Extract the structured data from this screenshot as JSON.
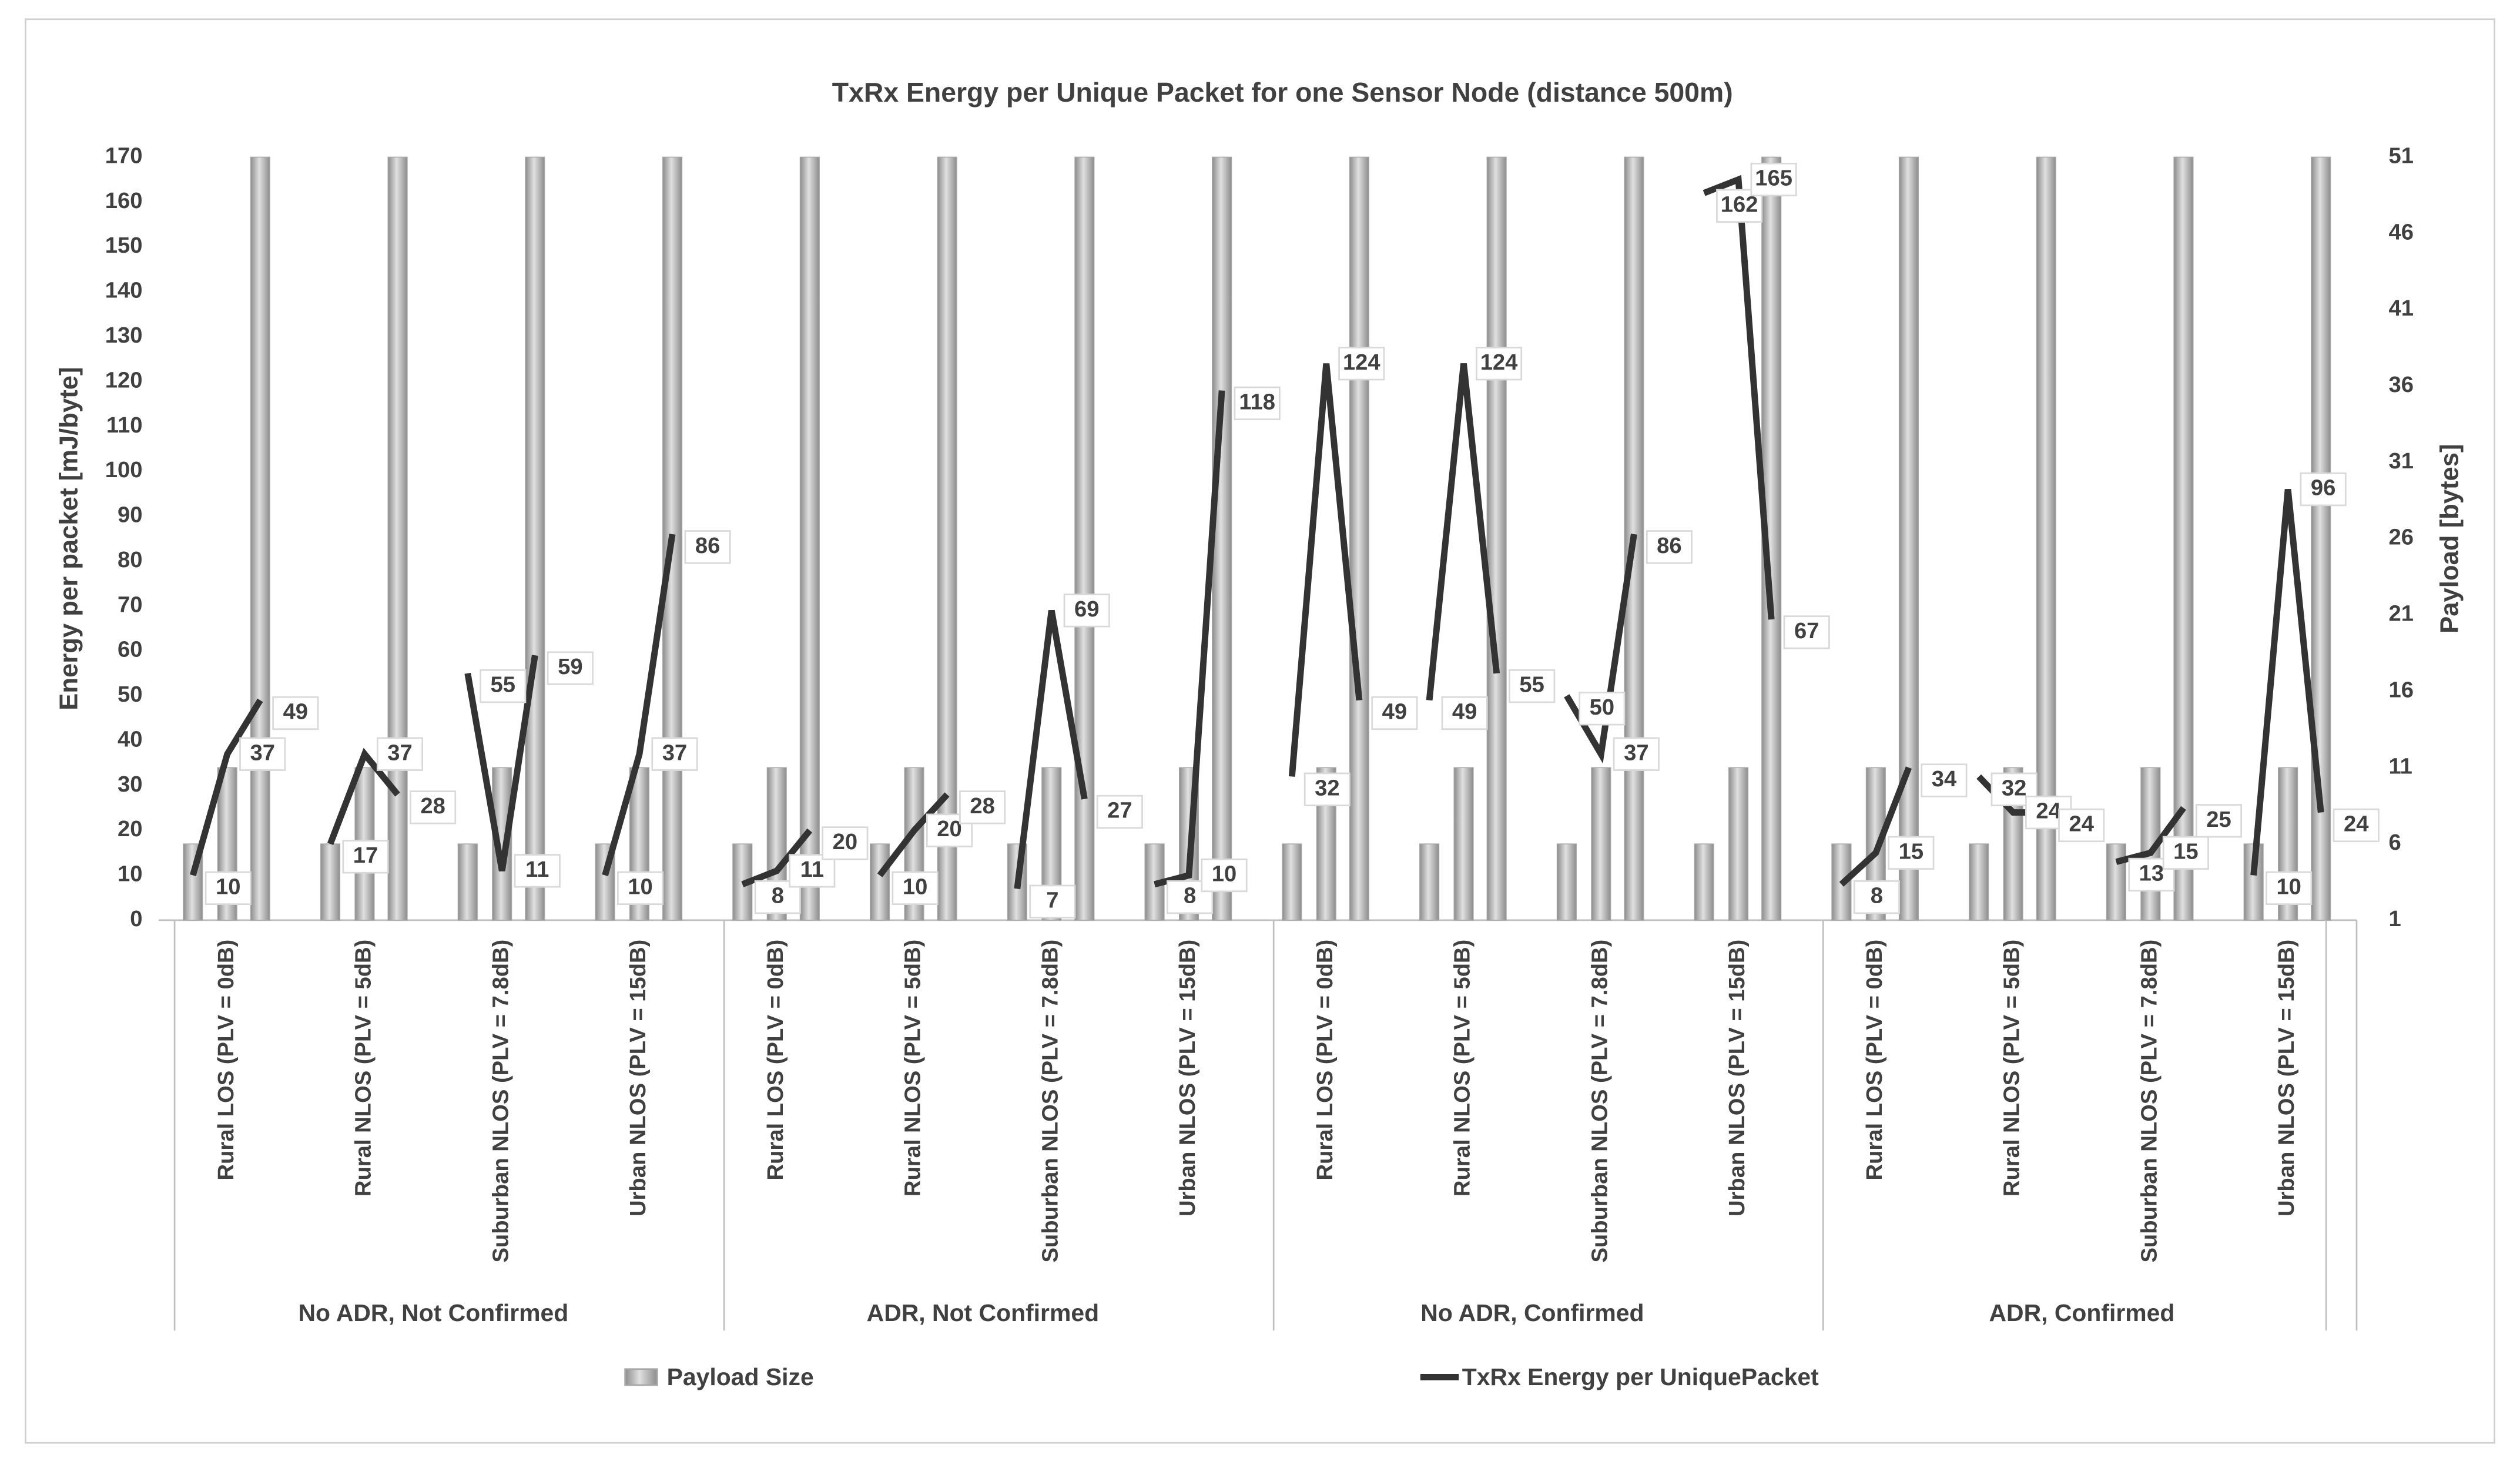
{
  "chart_data": {
    "type": "bar-line",
    "title": "TxRx Energy per Unique Packet for one Sensor Node  (distance 500m)",
    "y_label": "Energy per packet [mJ/byte]",
    "y2_label": "Payload [bytes]",
    "categories": [
      "Rural LOS (PLV = 0dB)",
      "Rural NLOS (PLV = 5dB)",
      "Suburban NLOS (PLV = 7.8dB)",
      "Urban NLOS (PLV = 15dB)",
      "Rural LOS (PLV = 0dB)",
      "Rural NLOS (PLV = 5dB)",
      "Suburban NLOS (PLV = 7.8dB)",
      "Urban NLOS (PLV = 15dB)",
      "Rural LOS (PLV = 0dB)",
      "Rural NLOS (PLV = 5dB)",
      "Suburban NLOS (PLV = 7.8dB)",
      "Urban NLOS (PLV = 15dB)",
      "Rural LOS (PLV = 0dB)",
      "Rural NLOS (PLV = 5dB)",
      "Suburban NLOS (PLV = 7.8dB)",
      "Urban NLOS (PLV = 15dB)"
    ],
    "groups": [
      "No ADR, Not Confirmed",
      "ADR, Not Confirmed",
      "No ADR, Confirmed",
      "ADR, Confirmed"
    ],
    "series": [
      {
        "name": "Payload Size",
        "type": "bar",
        "axis": "y2",
        "color": "#a6a6a6",
        "values": [
          [
            6,
            11,
            51
          ],
          [
            6,
            11,
            51
          ],
          [
            6,
            11,
            51
          ],
          [
            6,
            11,
            51
          ],
          [
            6,
            11,
            51
          ],
          [
            6,
            11,
            51
          ],
          [
            6,
            11,
            51
          ],
          [
            6,
            11,
            51
          ],
          [
            6,
            11,
            51
          ],
          [
            6,
            11,
            51
          ],
          [
            6,
            11,
            51
          ],
          [
            6,
            11,
            51
          ],
          [
            6,
            11,
            51
          ],
          [
            6,
            11,
            51
          ],
          [
            6,
            11,
            51
          ],
          [
            6,
            11,
            51
          ]
        ]
      },
      {
        "name": "TxRx Energy per UniquePacket",
        "type": "line",
        "color": "#333333",
        "values": [
          [
            10,
            37,
            49
          ],
          [
            17,
            37,
            28
          ],
          [
            55,
            11,
            59
          ],
          [
            10,
            37,
            86
          ],
          [
            8,
            11,
            20
          ],
          [
            10,
            20,
            28
          ],
          [
            7,
            69,
            27
          ],
          [
            8,
            10,
            118
          ],
          [
            32,
            124,
            49
          ],
          [
            49,
            124,
            55
          ],
          [
            50,
            37,
            86
          ],
          [
            162,
            165,
            67
          ],
          [
            8,
            15,
            34
          ],
          [
            32,
            24,
            24
          ],
          [
            13,
            15,
            25
          ],
          [
            10,
            96,
            24
          ]
        ]
      }
    ],
    "ylim": [
      0,
      170
    ],
    "yticks": [
      0,
      10,
      20,
      30,
      40,
      50,
      60,
      70,
      80,
      90,
      100,
      110,
      120,
      130,
      140,
      150,
      160,
      170
    ],
    "y2lim": [
      1,
      51
    ],
    "y2ticks": [
      1,
      6,
      11,
      16,
      21,
      26,
      31,
      36,
      41,
      46,
      51
    ],
    "legend": "bottom"
  }
}
